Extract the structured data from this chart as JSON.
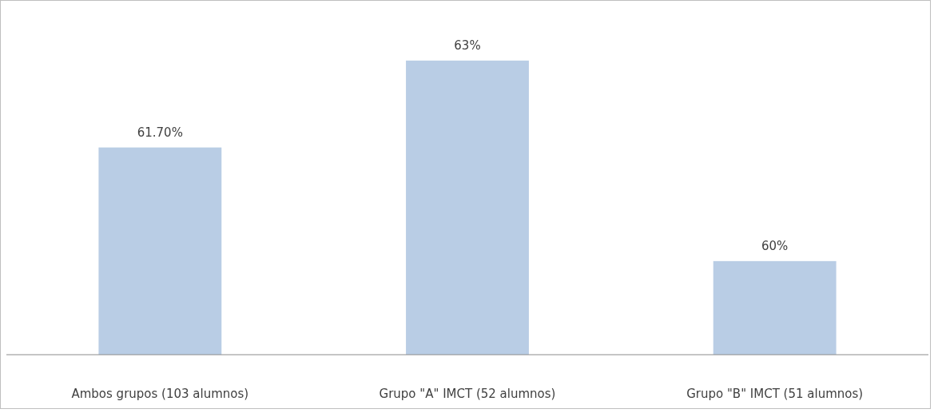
{
  "chart_data": {
    "type": "bar",
    "categories": [
      "Ambos grupos (103 alumnos)",
      "Grupo \"A\" IMCT (52 alumnos)",
      "Grupo \"B\" IMCT (51 alumnos)"
    ],
    "values": [
      61.7,
      63,
      60
    ],
    "value_labels": [
      "61.70%",
      "63%",
      "60%"
    ],
    "color": "#b9cde5",
    "ylim": [
      58.6,
      63.9
    ],
    "tick_labels": "x"
  }
}
